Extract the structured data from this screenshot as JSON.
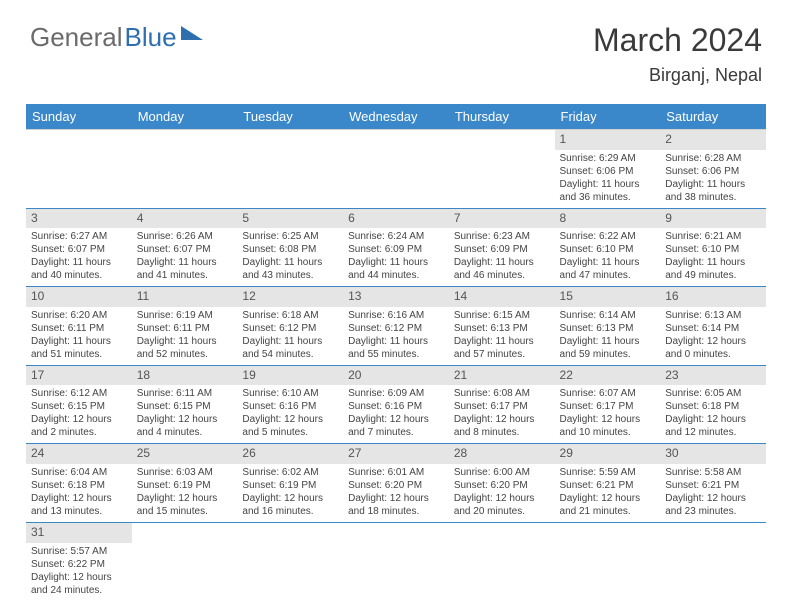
{
  "logo": {
    "general": "General",
    "blue": "Blue"
  },
  "title": "March 2024",
  "location": "Birganj, Nepal",
  "headers": [
    "Sunday",
    "Monday",
    "Tuesday",
    "Wednesday",
    "Thursday",
    "Friday",
    "Saturday"
  ],
  "colors": {
    "header_bg": "#3a87c9",
    "header_fg": "#ffffff",
    "row_border": "#3a87c9",
    "daynum_bg": "#e5e5e5",
    "text": "#444444"
  },
  "weeks": [
    [
      null,
      null,
      null,
      null,
      null,
      {
        "n": "1",
        "sr": "Sunrise: 6:29 AM",
        "ss": "Sunset: 6:06 PM",
        "d1": "Daylight: 11 hours",
        "d2": "and 36 minutes."
      },
      {
        "n": "2",
        "sr": "Sunrise: 6:28 AM",
        "ss": "Sunset: 6:06 PM",
        "d1": "Daylight: 11 hours",
        "d2": "and 38 minutes."
      }
    ],
    [
      {
        "n": "3",
        "sr": "Sunrise: 6:27 AM",
        "ss": "Sunset: 6:07 PM",
        "d1": "Daylight: 11 hours",
        "d2": "and 40 minutes."
      },
      {
        "n": "4",
        "sr": "Sunrise: 6:26 AM",
        "ss": "Sunset: 6:07 PM",
        "d1": "Daylight: 11 hours",
        "d2": "and 41 minutes."
      },
      {
        "n": "5",
        "sr": "Sunrise: 6:25 AM",
        "ss": "Sunset: 6:08 PM",
        "d1": "Daylight: 11 hours",
        "d2": "and 43 minutes."
      },
      {
        "n": "6",
        "sr": "Sunrise: 6:24 AM",
        "ss": "Sunset: 6:09 PM",
        "d1": "Daylight: 11 hours",
        "d2": "and 44 minutes."
      },
      {
        "n": "7",
        "sr": "Sunrise: 6:23 AM",
        "ss": "Sunset: 6:09 PM",
        "d1": "Daylight: 11 hours",
        "d2": "and 46 minutes."
      },
      {
        "n": "8",
        "sr": "Sunrise: 6:22 AM",
        "ss": "Sunset: 6:10 PM",
        "d1": "Daylight: 11 hours",
        "d2": "and 47 minutes."
      },
      {
        "n": "9",
        "sr": "Sunrise: 6:21 AM",
        "ss": "Sunset: 6:10 PM",
        "d1": "Daylight: 11 hours",
        "d2": "and 49 minutes."
      }
    ],
    [
      {
        "n": "10",
        "sr": "Sunrise: 6:20 AM",
        "ss": "Sunset: 6:11 PM",
        "d1": "Daylight: 11 hours",
        "d2": "and 51 minutes."
      },
      {
        "n": "11",
        "sr": "Sunrise: 6:19 AM",
        "ss": "Sunset: 6:11 PM",
        "d1": "Daylight: 11 hours",
        "d2": "and 52 minutes."
      },
      {
        "n": "12",
        "sr": "Sunrise: 6:18 AM",
        "ss": "Sunset: 6:12 PM",
        "d1": "Daylight: 11 hours",
        "d2": "and 54 minutes."
      },
      {
        "n": "13",
        "sr": "Sunrise: 6:16 AM",
        "ss": "Sunset: 6:12 PM",
        "d1": "Daylight: 11 hours",
        "d2": "and 55 minutes."
      },
      {
        "n": "14",
        "sr": "Sunrise: 6:15 AM",
        "ss": "Sunset: 6:13 PM",
        "d1": "Daylight: 11 hours",
        "d2": "and 57 minutes."
      },
      {
        "n": "15",
        "sr": "Sunrise: 6:14 AM",
        "ss": "Sunset: 6:13 PM",
        "d1": "Daylight: 11 hours",
        "d2": "and 59 minutes."
      },
      {
        "n": "16",
        "sr": "Sunrise: 6:13 AM",
        "ss": "Sunset: 6:14 PM",
        "d1": "Daylight: 12 hours",
        "d2": "and 0 minutes."
      }
    ],
    [
      {
        "n": "17",
        "sr": "Sunrise: 6:12 AM",
        "ss": "Sunset: 6:15 PM",
        "d1": "Daylight: 12 hours",
        "d2": "and 2 minutes."
      },
      {
        "n": "18",
        "sr": "Sunrise: 6:11 AM",
        "ss": "Sunset: 6:15 PM",
        "d1": "Daylight: 12 hours",
        "d2": "and 4 minutes."
      },
      {
        "n": "19",
        "sr": "Sunrise: 6:10 AM",
        "ss": "Sunset: 6:16 PM",
        "d1": "Daylight: 12 hours",
        "d2": "and 5 minutes."
      },
      {
        "n": "20",
        "sr": "Sunrise: 6:09 AM",
        "ss": "Sunset: 6:16 PM",
        "d1": "Daylight: 12 hours",
        "d2": "and 7 minutes."
      },
      {
        "n": "21",
        "sr": "Sunrise: 6:08 AM",
        "ss": "Sunset: 6:17 PM",
        "d1": "Daylight: 12 hours",
        "d2": "and 8 minutes."
      },
      {
        "n": "22",
        "sr": "Sunrise: 6:07 AM",
        "ss": "Sunset: 6:17 PM",
        "d1": "Daylight: 12 hours",
        "d2": "and 10 minutes."
      },
      {
        "n": "23",
        "sr": "Sunrise: 6:05 AM",
        "ss": "Sunset: 6:18 PM",
        "d1": "Daylight: 12 hours",
        "d2": "and 12 minutes."
      }
    ],
    [
      {
        "n": "24",
        "sr": "Sunrise: 6:04 AM",
        "ss": "Sunset: 6:18 PM",
        "d1": "Daylight: 12 hours",
        "d2": "and 13 minutes."
      },
      {
        "n": "25",
        "sr": "Sunrise: 6:03 AM",
        "ss": "Sunset: 6:19 PM",
        "d1": "Daylight: 12 hours",
        "d2": "and 15 minutes."
      },
      {
        "n": "26",
        "sr": "Sunrise: 6:02 AM",
        "ss": "Sunset: 6:19 PM",
        "d1": "Daylight: 12 hours",
        "d2": "and 16 minutes."
      },
      {
        "n": "27",
        "sr": "Sunrise: 6:01 AM",
        "ss": "Sunset: 6:20 PM",
        "d1": "Daylight: 12 hours",
        "d2": "and 18 minutes."
      },
      {
        "n": "28",
        "sr": "Sunrise: 6:00 AM",
        "ss": "Sunset: 6:20 PM",
        "d1": "Daylight: 12 hours",
        "d2": "and 20 minutes."
      },
      {
        "n": "29",
        "sr": "Sunrise: 5:59 AM",
        "ss": "Sunset: 6:21 PM",
        "d1": "Daylight: 12 hours",
        "d2": "and 21 minutes."
      },
      {
        "n": "30",
        "sr": "Sunrise: 5:58 AM",
        "ss": "Sunset: 6:21 PM",
        "d1": "Daylight: 12 hours",
        "d2": "and 23 minutes."
      }
    ],
    [
      {
        "n": "31",
        "sr": "Sunrise: 5:57 AM",
        "ss": "Sunset: 6:22 PM",
        "d1": "Daylight: 12 hours",
        "d2": "and 24 minutes."
      },
      null,
      null,
      null,
      null,
      null,
      null
    ]
  ]
}
